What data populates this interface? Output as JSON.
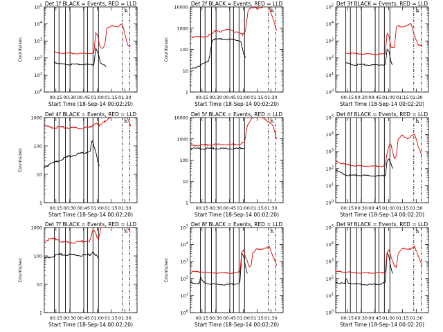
{
  "chart_data": [
    {
      "type": "line",
      "title": "Det 1f BLACK = Events, RED = LLD",
      "xlabel": "Start Time (18-Sep-14 00:02:20)",
      "ylabel": "Counts/sec",
      "yscale": "log",
      "ylim": [
        1,
        100000
      ],
      "yticks": [
        "10^0",
        "10^1",
        "10^2",
        "10^3",
        "10^4",
        "10^5"
      ],
      "xticks": [
        "00:15",
        "00:30",
        "00:45",
        "01:00",
        "01:15",
        "01:30"
      ],
      "xlim_minutes": [
        0,
        101
      ],
      "solid_lines": [
        11,
        16,
        23,
        28,
        43,
        47,
        53,
        59
      ],
      "dashed_lines": [
        85,
        93
      ],
      "marker_label": "A",
      "series": [
        {
          "color": "#000000",
          "x": [
            11,
            15,
            25,
            40,
            54,
            56,
            59,
            61,
            64,
            66,
            67
          ],
          "y": [
            60,
            45,
            42,
            42,
            40,
            400,
            180,
            50,
            40,
            35,
            30
          ]
        },
        {
          "color": "#e00000",
          "x": [
            11,
            15,
            25,
            40,
            54,
            56,
            58,
            60,
            62,
            64,
            66,
            68,
            70,
            75,
            80,
            85,
            88,
            91,
            94
          ],
          "y": [
            220,
            200,
            190,
            180,
            200,
            3000,
            2000,
            600,
            400,
            400,
            700,
            5000,
            6000,
            8000,
            7000,
            10000,
            2000,
            600,
            500
          ]
        }
      ]
    },
    {
      "type": "line",
      "title": "Det 2f BLACK = Events, RED = LLD",
      "xlabel": "Start Time (18-Sep-14 00:02:20)",
      "ylabel": "Counts/sec",
      "yscale": "log",
      "ylim": [
        1,
        10000
      ],
      "yticks": [
        "1",
        "10",
        "100",
        "1000",
        "10000"
      ],
      "xticks": [
        "00:15",
        "00:30",
        "00:45",
        "01:00",
        "01:15",
        "01:30"
      ],
      "xlim_minutes": [
        0,
        101
      ],
      "solid_lines": [
        11,
        16,
        23,
        28,
        43,
        47,
        53,
        59
      ],
      "dashed_lines": [
        85,
        93
      ],
      "marker_label": "A",
      "series": [
        {
          "color": "#000000",
          "x": [
            0,
            5,
            10,
            15,
            18,
            20,
            24,
            30,
            40,
            50,
            55,
            58,
            60
          ],
          "y": [
            12,
            14,
            17,
            22,
            25,
            30,
            300,
            300,
            300,
            280,
            250,
            60,
            40
          ]
        },
        {
          "color": "#e00000",
          "x": [
            0,
            10,
            18,
            23,
            28,
            33,
            38,
            43,
            48,
            53,
            57,
            60,
            63,
            70,
            80,
            85,
            90,
            94
          ],
          "y": [
            400,
            380,
            430,
            500,
            800,
            700,
            800,
            900,
            700,
            600,
            500,
            800,
            8000,
            9000,
            10000,
            12000,
            3000,
            800
          ]
        }
      ]
    },
    {
      "type": "line",
      "title": "Det 3f BLACK = Events, RED = LLD",
      "xlabel": "Start Time (18-Sep-14 00:02:20)",
      "ylabel": "",
      "yscale": "log",
      "ylim": [
        1,
        100000
      ],
      "yticks": [
        "10^0",
        "10^1",
        "10^2",
        "10^3",
        "10^4",
        "10^5"
      ],
      "xticks": [
        "00:15",
        "00:30",
        "00:45",
        "01:00",
        "01:15",
        "01:30"
      ],
      "xlim_minutes": [
        0,
        101
      ],
      "solid_lines": [
        11,
        16,
        23,
        28,
        43,
        47,
        53,
        59
      ],
      "dashed_lines": [
        85,
        93
      ],
      "marker_label": "A",
      "series": [
        {
          "color": "#000000",
          "x": [
            11,
            20,
            30,
            40,
            50,
            54,
            56,
            58,
            60,
            62
          ],
          "y": [
            50,
            40,
            40,
            38,
            40,
            42,
            300,
            250,
            60,
            40
          ]
        },
        {
          "color": "#e00000",
          "x": [
            11,
            20,
            30,
            40,
            50,
            54,
            56,
            58,
            60,
            62,
            64,
            66,
            68,
            72,
            78,
            82,
            86,
            90,
            94
          ],
          "y": [
            200,
            180,
            170,
            170,
            170,
            180,
            3000,
            2000,
            500,
            400,
            400,
            6000,
            8000,
            7000,
            8000,
            10000,
            2000,
            600,
            500
          ]
        }
      ]
    },
    {
      "type": "line",
      "title": "Det 4f BLACK = Events, RED = LLD",
      "xlabel": "Start Time (18-Sep-14 00:02:20)",
      "ylabel": "Counts/sec",
      "yscale": "log",
      "ylim": [
        1,
        1000
      ],
      "yticks": [
        "1",
        "10",
        "100",
        "1000"
      ],
      "xticks": [
        "00:15",
        "00:30",
        "00:45",
        "01:00",
        "01:15",
        "01:30"
      ],
      "xlim_minutes": [
        0,
        101
      ],
      "solid_lines": [
        11,
        16,
        23,
        28,
        43,
        47,
        53,
        59
      ],
      "dashed_lines": [
        85,
        93
      ],
      "marker_label": "A",
      "series": [
        {
          "color": "#000000",
          "x": [
            0,
            5,
            10,
            15,
            20,
            25,
            30,
            35,
            40,
            45,
            50,
            52,
            54,
            56,
            58,
            60
          ],
          "y": [
            18,
            22,
            25,
            30,
            35,
            40,
            45,
            50,
            55,
            58,
            70,
            150,
            100,
            60,
            30,
            20
          ]
        },
        {
          "color": "#e00000",
          "x": [
            0,
            10,
            20,
            30,
            40,
            50,
            54,
            57,
            60,
            63,
            70,
            80,
            85,
            90,
            94
          ],
          "y": [
            500,
            450,
            450,
            430,
            430,
            450,
            600,
            700,
            500,
            600,
            1000,
            1200,
            1200,
            1000,
            500
          ]
        }
      ]
    },
    {
      "type": "line",
      "title": "Det 5f BLACK = Events, RED = LLD",
      "xlabel": "Start Time (18-Sep-14 00:02:20)",
      "ylabel": "",
      "yscale": "log",
      "ylim": [
        1,
        10000
      ],
      "yticks": [
        "1",
        "10",
        "100",
        "1000",
        "10000"
      ],
      "xticks": [
        "00:15",
        "00:30",
        "00:45",
        "01:00",
        "01:15",
        "01:30"
      ],
      "xlim_minutes": [
        0,
        101
      ],
      "solid_lines": [
        11,
        16,
        23,
        28,
        43,
        47,
        53,
        59
      ],
      "dashed_lines": [
        85,
        93
      ],
      "marker_label": "A",
      "series": [
        {
          "color": "#000000",
          "x": [
            0,
            10,
            20,
            30,
            40,
            50,
            55,
            59
          ],
          "y": [
            350,
            350,
            350,
            350,
            350,
            350,
            360,
            380
          ]
        },
        {
          "color": "#e00000",
          "x": [
            0,
            10,
            20,
            30,
            40,
            50,
            55,
            59,
            62,
            66,
            70,
            80,
            90,
            94
          ],
          "y": [
            500,
            500,
            520,
            550,
            550,
            560,
            600,
            650,
            4000,
            9000,
            12000,
            10000,
            4000,
            1000
          ]
        }
      ]
    },
    {
      "type": "line",
      "title": "Det 6f BLACK = Events, RED = LLD",
      "xlabel": "Start Time (18-Sep-14 00:02:20)",
      "ylabel": "",
      "yscale": "log",
      "ylim": [
        1,
        100000
      ],
      "yticks": [
        "10^0",
        "10^1",
        "10^2",
        "10^3",
        "10^4",
        "10^5"
      ],
      "xticks": [
        "00:15",
        "00:30",
        "00:45",
        "01:00",
        "01:15",
        "01:30"
      ],
      "xlim_minutes": [
        0,
        101
      ],
      "solid_lines": [
        11,
        16,
        23,
        28,
        43,
        47,
        53,
        59
      ],
      "dashed_lines": [
        85,
        93
      ],
      "marker_label": "A",
      "series": [
        {
          "color": "#000000",
          "x": [
            0,
            5,
            10,
            15,
            20,
            30,
            40,
            50,
            54,
            56,
            58,
            60,
            62
          ],
          "y": [
            80,
            60,
            45,
            40,
            40,
            40,
            38,
            38,
            40,
            300,
            400,
            200,
            100
          ]
        },
        {
          "color": "#e00000",
          "x": [
            0,
            5,
            10,
            15,
            20,
            30,
            40,
            50,
            54,
            56,
            58,
            60,
            62,
            64,
            66,
            68,
            72,
            78,
            82,
            86,
            90,
            94
          ],
          "y": [
            300,
            220,
            180,
            160,
            150,
            140,
            140,
            140,
            160,
            800,
            2000,
            3000,
            1000,
            400,
            600,
            5000,
            9000,
            6000,
            8000,
            10000,
            2000,
            600
          ]
        }
      ]
    },
    {
      "type": "line",
      "title": "Det 7f BLACK = Events, RED = LLD",
      "xlabel": "Start Time (18-Sep-14 00:02:20)",
      "ylabel": "Counts/sec",
      "yscale": "log",
      "ylim": [
        1,
        1000
      ],
      "yticks": [
        "1",
        "10",
        "100",
        "1000"
      ],
      "xticks": [
        "00:15",
        "00:30",
        "00:45",
        "01:00",
        "01:15",
        "01:30"
      ],
      "xlim_minutes": [
        0,
        101
      ],
      "solid_lines": [
        11,
        16,
        23,
        28,
        43,
        47,
        53,
        59
      ],
      "dashed_lines": [
        85,
        93
      ],
      "marker_label": "A",
      "series": [
        {
          "color": "#000000",
          "x": [
            0,
            5,
            10,
            15,
            20,
            30,
            40,
            50,
            53,
            55,
            57,
            59
          ],
          "y": [
            80,
            90,
            100,
            110,
            110,
            110,
            105,
            110,
            150,
            120,
            100,
            80
          ]
        },
        {
          "color": "#e00000",
          "x": [
            0,
            5,
            10,
            15,
            20,
            30,
            40,
            50,
            53,
            55,
            57,
            59,
            62,
            70,
            80,
            90,
            94
          ],
          "y": [
            350,
            380,
            400,
            380,
            300,
            300,
            320,
            350,
            800,
            700,
            500,
            400,
            1200,
            1200,
            1200,
            1100,
            700
          ]
        }
      ]
    },
    {
      "type": "line",
      "title": "Det 8f BLACK = Events, RED = LLD",
      "xlabel": "Start Time (18-Sep-14 00:02:20)",
      "ylabel": "Counts/sec",
      "yscale": "log",
      "ylim": [
        1,
        100000
      ],
      "yticks": [
        "10^0",
        "10^1",
        "10^2",
        "10^3",
        "10^4",
        "10^5"
      ],
      "xticks": [
        "00:15",
        "00:30",
        "00:45",
        "01:00",
        "01:15",
        "01:30"
      ],
      "xlim_minutes": [
        0,
        101
      ],
      "solid_lines": [
        11,
        16,
        23,
        28,
        43,
        47,
        53,
        59
      ],
      "dashed_lines": [
        85,
        93
      ],
      "marker_label": "A",
      "series": [
        {
          "color": "#000000",
          "x": [
            0,
            5,
            10,
            11,
            14,
            20,
            30,
            40,
            50,
            54,
            56,
            58,
            60,
            62
          ],
          "y": [
            60,
            55,
            50,
            120,
            60,
            50,
            45,
            45,
            50,
            60,
            3000,
            2000,
            500,
            200
          ]
        },
        {
          "color": "#e00000",
          "x": [
            0,
            5,
            10,
            11,
            14,
            20,
            30,
            40,
            50,
            54,
            56,
            58,
            60,
            62,
            64,
            66,
            68,
            72,
            78,
            82,
            86,
            90,
            94
          ],
          "y": [
            250,
            250,
            240,
            260,
            240,
            220,
            220,
            220,
            220,
            250,
            4000,
            5000,
            2000,
            1000,
            500,
            500,
            3000,
            6000,
            5000,
            6000,
            8000,
            2000,
            600
          ]
        }
      ]
    },
    {
      "type": "line",
      "title": "Det 9f BLACK = Events, RED = LLD",
      "xlabel": "Start Time (18-Sep-14 00:02:20)",
      "ylabel": "",
      "yscale": "log",
      "ylim": [
        1,
        100000
      ],
      "yticks": [
        "10^0",
        "10^1",
        "10^2",
        "10^3",
        "10^4",
        "10^5"
      ],
      "xticks": [
        "00:15",
        "00:30",
        "00:45",
        "01:00",
        "01:15",
        "01:30"
      ],
      "xlim_minutes": [
        0,
        101
      ],
      "solid_lines": [
        11,
        16,
        23,
        28,
        43,
        47,
        53,
        59
      ],
      "dashed_lines": [
        85,
        93
      ],
      "marker_label": "A",
      "series": [
        {
          "color": "#000000",
          "x": [
            0,
            5,
            10,
            11,
            14,
            20,
            30,
            40,
            50,
            54,
            56,
            58,
            60,
            62
          ],
          "y": [
            60,
            55,
            50,
            100,
            55,
            50,
            45,
            45,
            50,
            60,
            3000,
            2000,
            500,
            200
          ]
        },
        {
          "color": "#e00000",
          "x": [
            0,
            5,
            10,
            11,
            14,
            20,
            30,
            40,
            50,
            54,
            56,
            58,
            60,
            62,
            64,
            66,
            68,
            72,
            78,
            82,
            86,
            90,
            94
          ],
          "y": [
            250,
            250,
            240,
            260,
            240,
            220,
            220,
            220,
            220,
            250,
            4000,
            5000,
            2000,
            1000,
            500,
            500,
            3000,
            6000,
            5000,
            6000,
            8000,
            2000,
            600
          ]
        }
      ]
    }
  ]
}
